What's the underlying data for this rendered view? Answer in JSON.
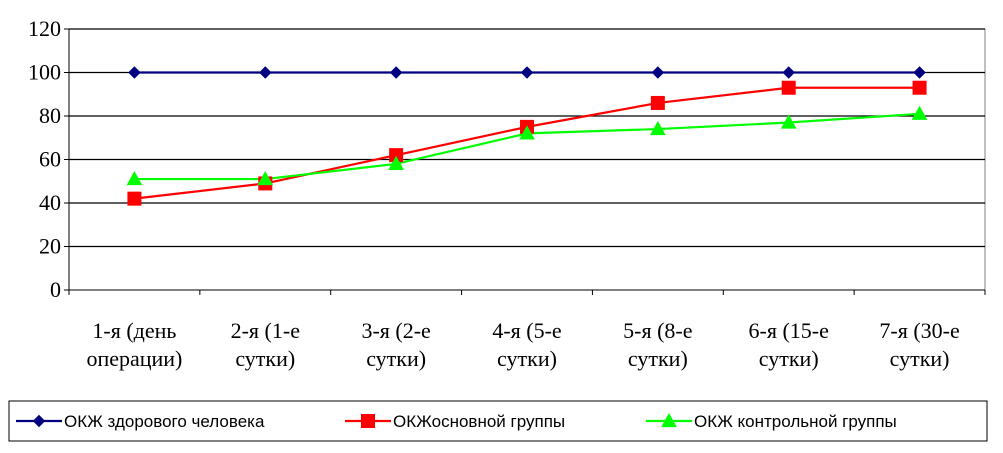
{
  "chart_data": {
    "type": "line",
    "title": "",
    "xlabel": "",
    "ylabel": "",
    "ylim": [
      0,
      120
    ],
    "yticks": [
      0,
      20,
      40,
      60,
      80,
      100,
      120
    ],
    "grid": "horizontal",
    "legend_position": "bottom",
    "categories": [
      [
        "1-я (день",
        "операции)"
      ],
      [
        "2-я (1-е",
        "сутки)"
      ],
      [
        "3-я (2-е",
        "сутки)"
      ],
      [
        "4-я (5-е",
        "сутки)"
      ],
      [
        "5-я (8-е",
        "сутки)"
      ],
      [
        "6-я (15-е",
        "сутки)"
      ],
      [
        "7-я (30-е",
        "сутки)"
      ]
    ],
    "series": [
      {
        "name": "ОКЖ здорового человека",
        "color": "#000080",
        "marker": "diamond",
        "values": [
          100,
          100,
          100,
          100,
          100,
          100,
          100
        ]
      },
      {
        "name": "ОКЖосновной группы",
        "color": "#ff0000",
        "marker": "square",
        "values": [
          42,
          49,
          62,
          75,
          86,
          93,
          93
        ]
      },
      {
        "name": "ОКЖ контрольной группы",
        "color": "#00ff00",
        "marker": "triangle",
        "values": [
          51,
          51,
          58,
          72,
          74,
          77,
          81
        ]
      }
    ]
  }
}
